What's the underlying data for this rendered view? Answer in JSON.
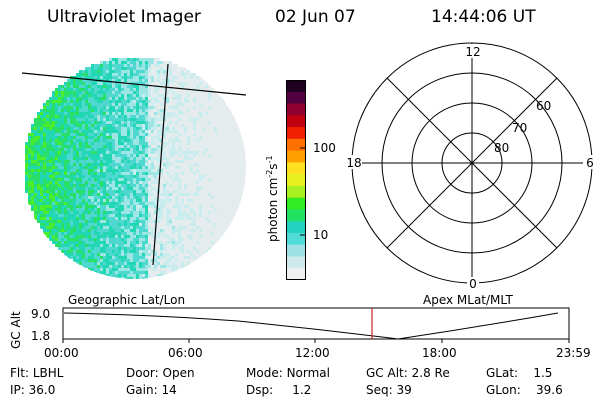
{
  "header": {
    "title": "Ultraviolet Imager",
    "date": "02 Jun 07",
    "time": "14:44:06 UT"
  },
  "colorbar": {
    "label": "photon cm",
    "label_sup1": "-2",
    "label_mid": "s",
    "label_sup2": "-1",
    "ticks": [
      "100",
      "10"
    ],
    "colors": [
      "#eef0f2",
      "#cfe8ec",
      "#9fe0e6",
      "#50dcd6",
      "#22d4c0",
      "#22e060",
      "#30ec20",
      "#a8f020",
      "#e8f020",
      "#ffe020",
      "#ffa000",
      "#ff7000",
      "#f02000",
      "#c00010",
      "#900030",
      "#500040",
      "#200020"
    ]
  },
  "polar": {
    "mlt_labels": [
      "12",
      "18",
      "6",
      "0"
    ],
    "lat_labels": [
      "60",
      "70",
      "80"
    ]
  },
  "timeline": {
    "left_label": "Geographic Lat/Lon",
    "right_label": "Apex  MLat/MLT",
    "axis_title": "GC Alt",
    "y_ticks": [
      "9.0",
      "1.8"
    ],
    "x_ticks": [
      "00:00",
      "06:00",
      "12:00",
      "18:00",
      "23:59"
    ],
    "marker_color": "#cc2020"
  },
  "info": {
    "row1": [
      {
        "label": "Flt:",
        "value": "LBHL"
      },
      {
        "label": "Door:",
        "value": "Open"
      },
      {
        "label": "Mode:",
        "value": "Normal"
      },
      {
        "label": "GC Alt:",
        "value": "2.8 Re"
      },
      {
        "label": "GLat:",
        "value": "1.5"
      }
    ],
    "row2": [
      {
        "label": "IP:",
        "value": "36.0"
      },
      {
        "label": "Gain:",
        "value": "14"
      },
      {
        "label": "Dsp:",
        "value": "1.2"
      },
      {
        "label": "Seq:",
        "value": "39"
      },
      {
        "label": "GLon:",
        "value": "39.6"
      }
    ]
  }
}
